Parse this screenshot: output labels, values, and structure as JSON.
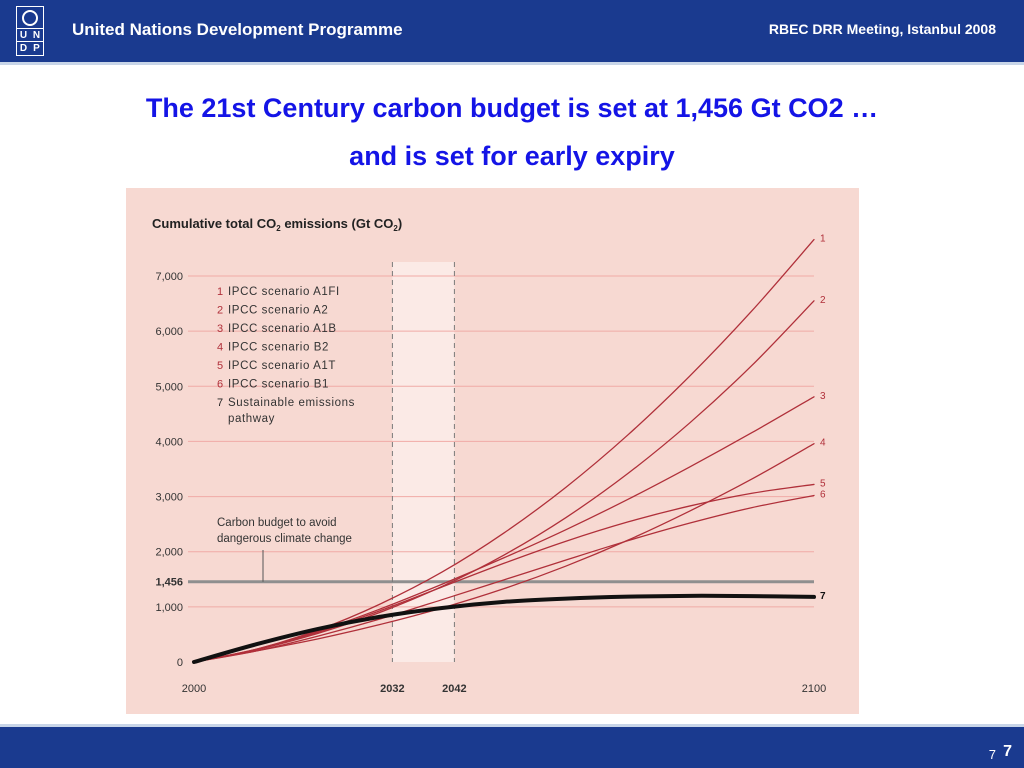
{
  "header": {
    "logo_letters": [
      "U",
      "N",
      "D",
      "P"
    ],
    "org_name": "United Nations Development Programme",
    "meeting": "RBEC DRR Meeting, Istanbul 2008",
    "background_color": "#1a3a8f"
  },
  "slide": {
    "title_line1": "The 21st Century carbon budget is set at 1,456 Gt CO2 …",
    "title_line2": "and is set for early expiry",
    "title_color": "#1414e6"
  },
  "footer": {
    "slide_number_small": "7",
    "slide_number": "7"
  },
  "chart_data": {
    "type": "line",
    "title_prefix": "Cumulative total CO",
    "title_sub": "2",
    "title_mid": " emissions (Gt CO",
    "title_sub2": "2",
    "title_suffix": ")",
    "background_color": "#f7d9d2",
    "series_color": "#b0303a",
    "xlim": [
      2000,
      2100
    ],
    "ylim": [
      0,
      7000
    ],
    "x_ticks": [
      {
        "value": 2000,
        "label": "2000",
        "bold": false
      },
      {
        "value": 2032,
        "label": "2032",
        "bold": true
      },
      {
        "value": 2042,
        "label": "2042",
        "bold": true
      },
      {
        "value": 2100,
        "label": "2100",
        "bold": false
      }
    ],
    "y_ticks": [
      {
        "value": 0,
        "label": "0",
        "bold": false,
        "grid": false
      },
      {
        "value": 1000,
        "label": "1,000",
        "bold": false,
        "grid": true
      },
      {
        "value": 1456,
        "label": "1,456",
        "bold": true,
        "grid": false
      },
      {
        "value": 2000,
        "label": "2,000",
        "bold": false,
        "grid": true
      },
      {
        "value": 3000,
        "label": "3,000",
        "bold": false,
        "grid": true
      },
      {
        "value": 4000,
        "label": "4,000",
        "bold": false,
        "grid": true
      },
      {
        "value": 5000,
        "label": "5,000",
        "bold": false,
        "grid": true
      },
      {
        "value": 6000,
        "label": "6,000",
        "bold": false,
        "grid": true
      },
      {
        "value": 7000,
        "label": "7,000",
        "bold": false,
        "grid": true
      }
    ],
    "budget": {
      "value": 1456,
      "label_line1": "Carbon budget to avoid",
      "label_line2": "dangerous climate change"
    },
    "highlight_band": [
      2032,
      2042
    ],
    "legend": [
      {
        "num": "1",
        "text": "IPCC scenario A1FI"
      },
      {
        "num": "2",
        "text": "IPCC scenario A2"
      },
      {
        "num": "3",
        "text": "IPCC scenario A1B"
      },
      {
        "num": "4",
        "text": "IPCC scenario B2"
      },
      {
        "num": "5",
        "text": "IPCC scenario A1T"
      },
      {
        "num": "6",
        "text": "IPCC scenario B1"
      },
      {
        "num": "7",
        "text": "Sustainable emissions",
        "text2": "pathway"
      }
    ],
    "x": [
      2000,
      2010,
      2020,
      2030,
      2040,
      2050,
      2060,
      2070,
      2080,
      2090,
      2100
    ],
    "series": [
      {
        "label": "1",
        "values": [
          0,
          230,
          580,
          1050,
          1630,
          2340,
          3170,
          4120,
          5190,
          6370,
          7660
        ],
        "bold": false
      },
      {
        "label": "2",
        "values": [
          0,
          220,
          520,
          900,
          1370,
          1940,
          2620,
          3420,
          4340,
          5380,
          6550
        ],
        "bold": false
      },
      {
        "label": "3",
        "values": [
          0,
          230,
          560,
          960,
          1410,
          1890,
          2400,
          2950,
          3540,
          4160,
          4810
        ],
        "bold": false
      },
      {
        "label": "4",
        "values": [
          0,
          200,
          420,
          680,
          980,
          1330,
          1740,
          2210,
          2740,
          3320,
          3960
        ],
        "bold": false
      },
      {
        "label": "5",
        "values": [
          0,
          220,
          540,
          930,
          1360,
          1790,
          2190,
          2540,
          2830,
          3060,
          3220
        ],
        "bold": false
      },
      {
        "label": "6",
        "values": [
          0,
          200,
          470,
          780,
          1130,
          1490,
          1850,
          2200,
          2520,
          2800,
          3020
        ],
        "bold": false
      },
      {
        "label": "7",
        "values": [
          0,
          320,
          600,
          820,
          980,
          1090,
          1150,
          1185,
          1200,
          1195,
          1180
        ],
        "bold": true
      }
    ]
  }
}
